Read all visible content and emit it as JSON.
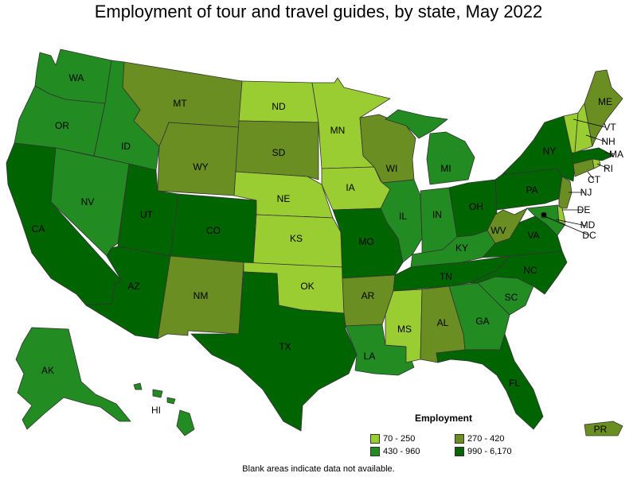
{
  "title": "Employment of tour and travel guides, by state, May 2022",
  "legend": {
    "title": "Employment",
    "items": [
      {
        "label": "70 - 250",
        "color": "#9acd32"
      },
      {
        "label": "270 - 420",
        "color": "#6b8e23"
      },
      {
        "label": "430 - 960",
        "color": "#228b22"
      },
      {
        "label": "990 - 6,170",
        "color": "#006400"
      }
    ]
  },
  "footnote": "Blank areas indicate data not available.",
  "states": [
    {
      "abbr": "WA",
      "cls": 3
    },
    {
      "abbr": "OR",
      "cls": 3
    },
    {
      "abbr": "CA",
      "cls": 4
    },
    {
      "abbr": "NV",
      "cls": 3
    },
    {
      "abbr": "ID",
      "cls": 3
    },
    {
      "abbr": "MT",
      "cls": 2
    },
    {
      "abbr": "WY",
      "cls": 2
    },
    {
      "abbr": "UT",
      "cls": 4
    },
    {
      "abbr": "AZ",
      "cls": 4
    },
    {
      "abbr": "CO",
      "cls": 4
    },
    {
      "abbr": "NM",
      "cls": 2
    },
    {
      "abbr": "ND",
      "cls": 1
    },
    {
      "abbr": "SD",
      "cls": 2
    },
    {
      "abbr": "NE",
      "cls": 1
    },
    {
      "abbr": "KS",
      "cls": 1
    },
    {
      "abbr": "OK",
      "cls": 1
    },
    {
      "abbr": "TX",
      "cls": 4
    },
    {
      "abbr": "MN",
      "cls": 1
    },
    {
      "abbr": "IA",
      "cls": 1
    },
    {
      "abbr": "MO",
      "cls": 4
    },
    {
      "abbr": "AR",
      "cls": 2
    },
    {
      "abbr": "LA",
      "cls": 3
    },
    {
      "abbr": "WI",
      "cls": 2
    },
    {
      "abbr": "IL",
      "cls": 3
    },
    {
      "abbr": "MI",
      "cls": 3
    },
    {
      "abbr": "IN",
      "cls": 3
    },
    {
      "abbr": "OH",
      "cls": 4
    },
    {
      "abbr": "KY",
      "cls": 3
    },
    {
      "abbr": "TN",
      "cls": 4
    },
    {
      "abbr": "MS",
      "cls": 1
    },
    {
      "abbr": "AL",
      "cls": 2
    },
    {
      "abbr": "GA",
      "cls": 3
    },
    {
      "abbr": "FL",
      "cls": 4
    },
    {
      "abbr": "SC",
      "cls": 3
    },
    {
      "abbr": "NC",
      "cls": 4
    },
    {
      "abbr": "VA",
      "cls": 4
    },
    {
      "abbr": "WV",
      "cls": 2
    },
    {
      "abbr": "PA",
      "cls": 4
    },
    {
      "abbr": "NY",
      "cls": 4
    },
    {
      "abbr": "VT",
      "cls": 1
    },
    {
      "abbr": "NH",
      "cls": 1
    },
    {
      "abbr": "ME",
      "cls": 2
    },
    {
      "abbr": "MA",
      "cls": 4
    },
    {
      "abbr": "RI",
      "cls": 1
    },
    {
      "abbr": "CT",
      "cls": 2
    },
    {
      "abbr": "NJ",
      "cls": 2
    },
    {
      "abbr": "DE",
      "cls": 1
    },
    {
      "abbr": "MD",
      "cls": 3
    },
    {
      "abbr": "DC",
      "cls": 4
    },
    {
      "abbr": "AK",
      "cls": 3
    },
    {
      "abbr": "HI",
      "cls": 3
    },
    {
      "abbr": "PR",
      "cls": 2
    }
  ]
}
